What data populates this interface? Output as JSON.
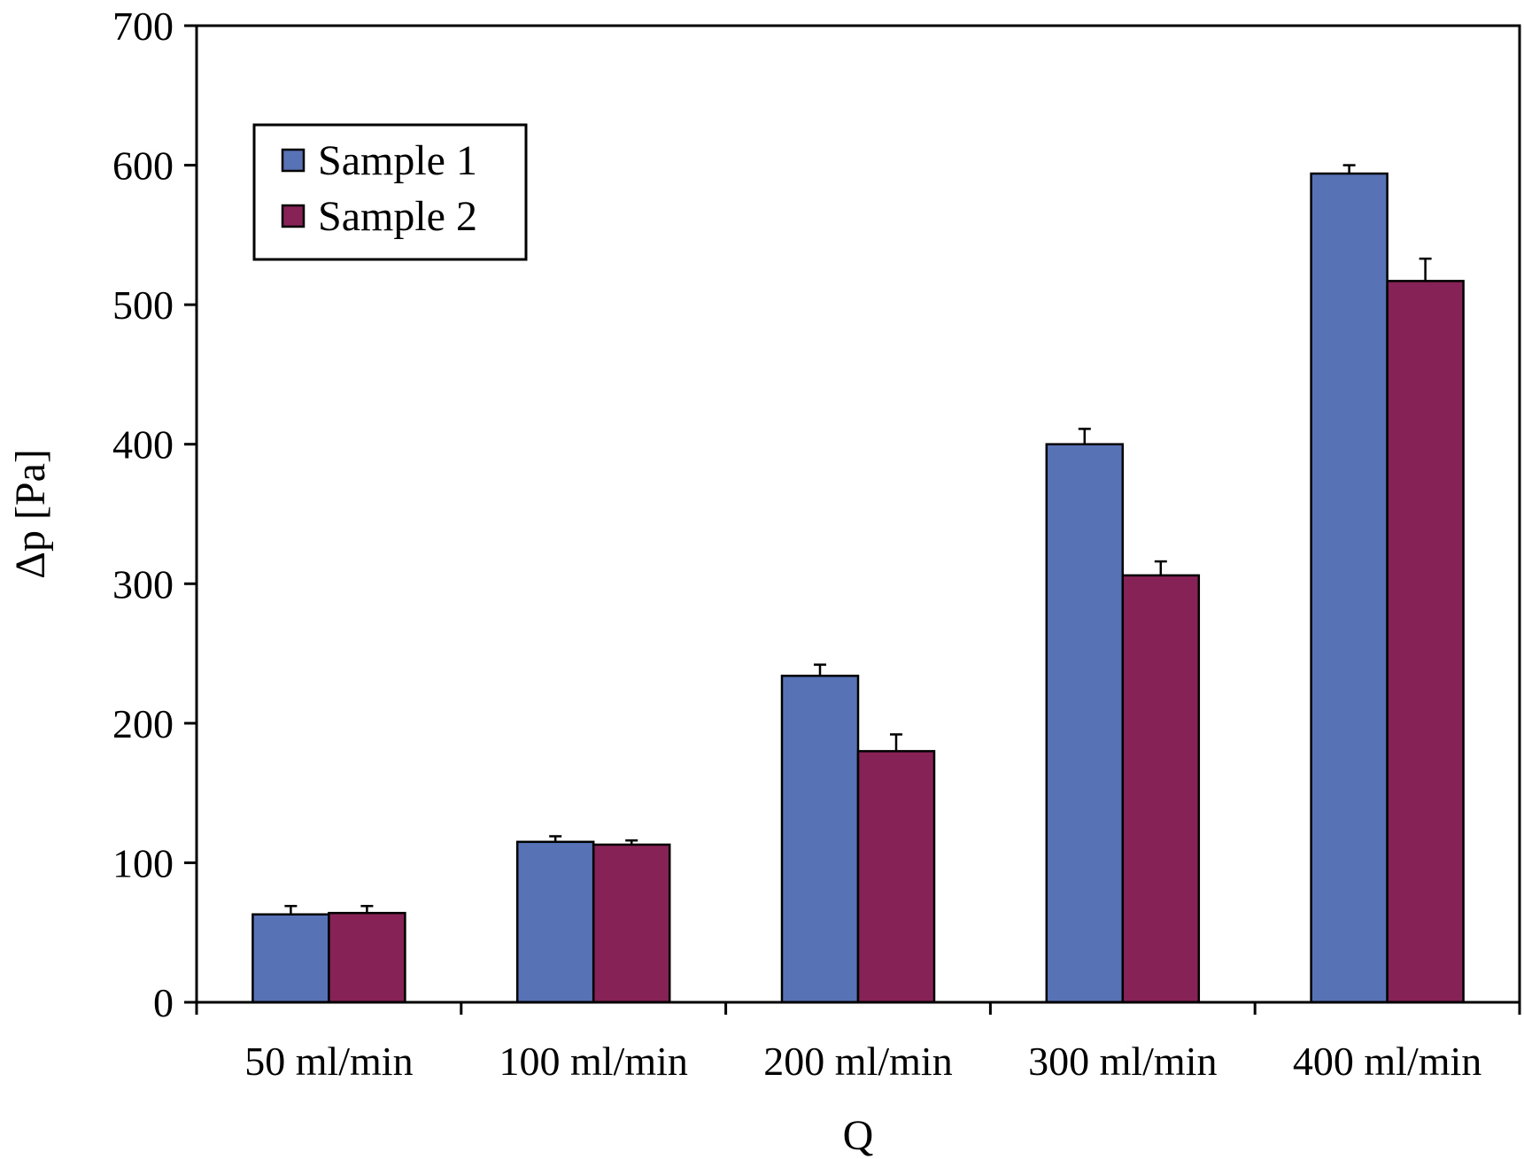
{
  "chart_data": {
    "type": "bar",
    "categories": [
      "50 ml/min",
      "100 ml/min",
      "200 ml/min",
      "300 ml/min",
      "400 ml/min"
    ],
    "series": [
      {
        "name": "Sample 1",
        "color": "#5872b6",
        "values": [
          63,
          115,
          234,
          400,
          594
        ],
        "errors": [
          6,
          4,
          8,
          11,
          6
        ]
      },
      {
        "name": "Sample 2",
        "color": "#862255",
        "values": [
          64,
          113,
          180,
          306,
          517
        ],
        "errors": [
          5,
          3,
          12,
          10,
          16
        ]
      }
    ],
    "xlabel": "Q",
    "ylabel": "Δp [Pa]",
    "ylim": [
      0,
      700
    ],
    "yticks": [
      0,
      100,
      200,
      300,
      400,
      500,
      600,
      700
    ],
    "grid": false,
    "legend": "top-left"
  }
}
